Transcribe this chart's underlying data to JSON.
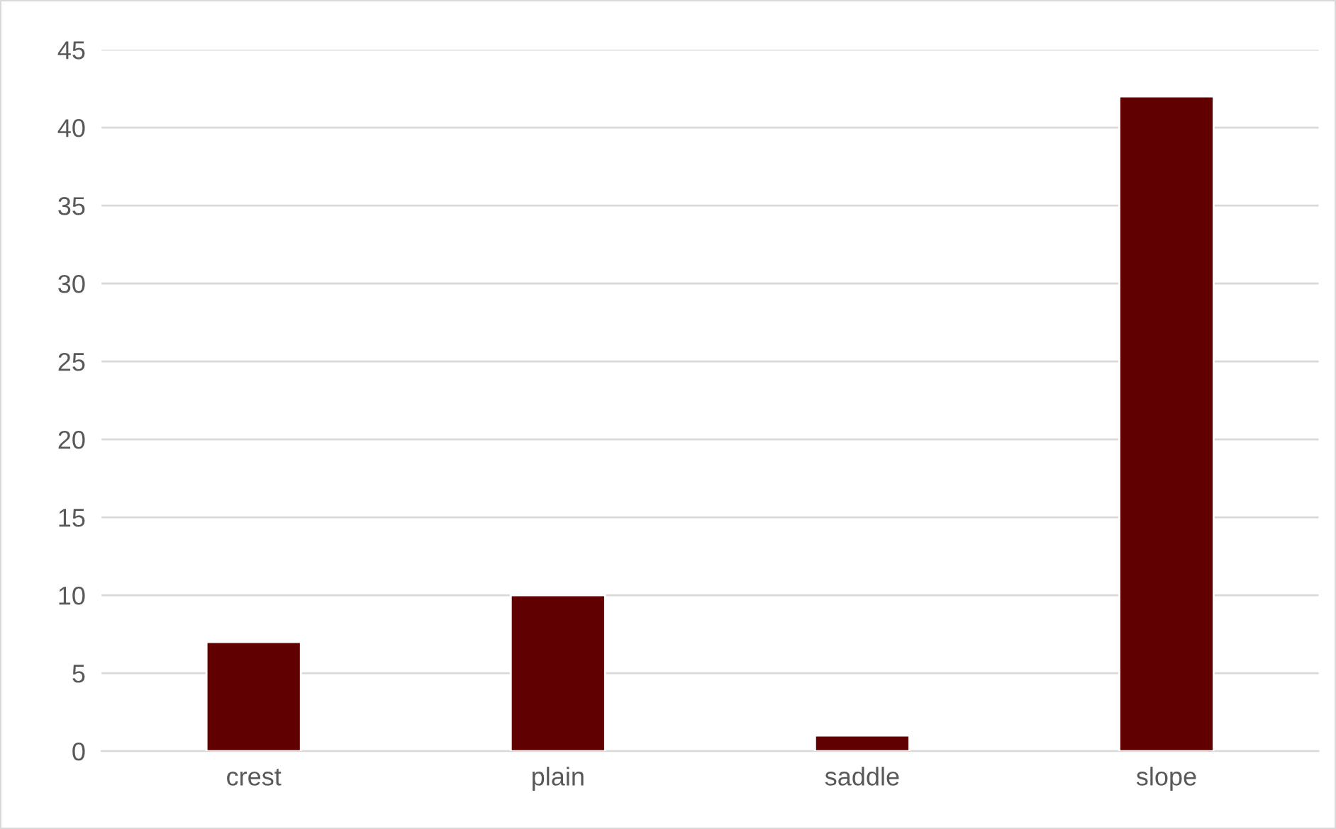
{
  "chart_data": {
    "type": "bar",
    "categories": [
      "crest",
      "plain",
      "saddle",
      "slope"
    ],
    "values": [
      7,
      10,
      1,
      42
    ],
    "color": "#600000",
    "ylim": [
      0,
      45
    ],
    "yticks": [
      0,
      5,
      10,
      15,
      20,
      25,
      30,
      35,
      40,
      45
    ],
    "grid": "y",
    "legend": false
  }
}
